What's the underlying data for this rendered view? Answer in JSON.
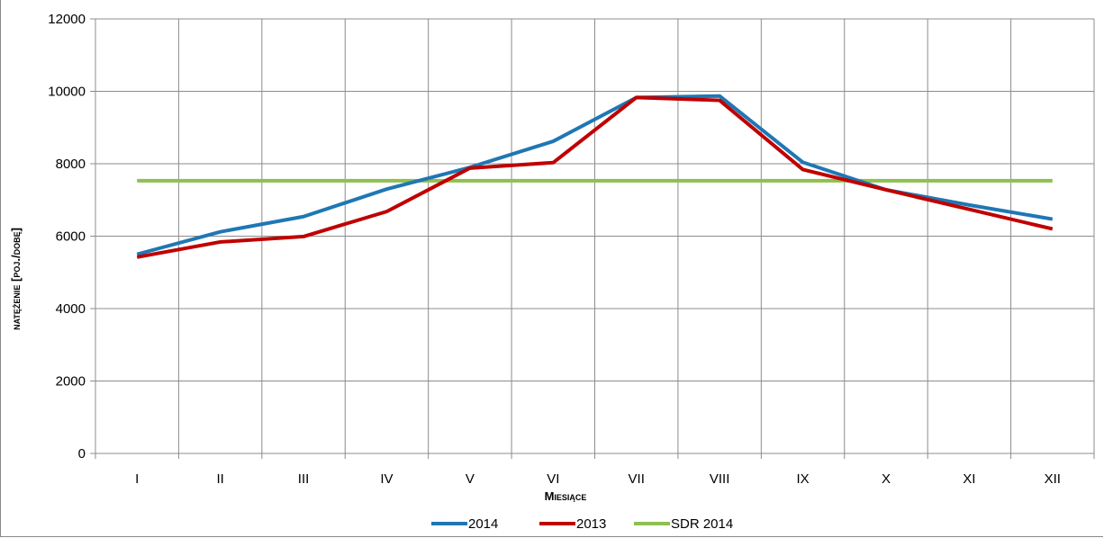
{
  "chart_data": {
    "type": "line",
    "title": "",
    "xlabel": "Miesiące",
    "ylabel": "natężenie [poj./dobę]",
    "categories": [
      "I",
      "II",
      "III",
      "IV",
      "V",
      "VI",
      "VII",
      "VIII",
      "IX",
      "X",
      "XI",
      "XII"
    ],
    "ylim": [
      0,
      12000
    ],
    "yticks": [
      0,
      2000,
      4000,
      6000,
      8000,
      10000,
      12000
    ],
    "grid": true,
    "legend_position": "bottom",
    "series": [
      {
        "name": "2014",
        "color": "#1f77b4",
        "values": [
          5500,
          6120,
          6540,
          7300,
          7900,
          8620,
          9830,
          9870,
          8040,
          7280,
          6860,
          6470
        ]
      },
      {
        "name": "2013",
        "color": "#c00000",
        "values": [
          5420,
          5840,
          5990,
          6680,
          7880,
          8030,
          9830,
          9750,
          7840,
          7280,
          6740,
          6200
        ]
      },
      {
        "name": "SDR 2014",
        "color": "#8ec04f",
        "values": [
          7530,
          7530,
          7530,
          7530,
          7530,
          7530,
          7530,
          7530,
          7530,
          7530,
          7530,
          7530
        ]
      }
    ]
  }
}
